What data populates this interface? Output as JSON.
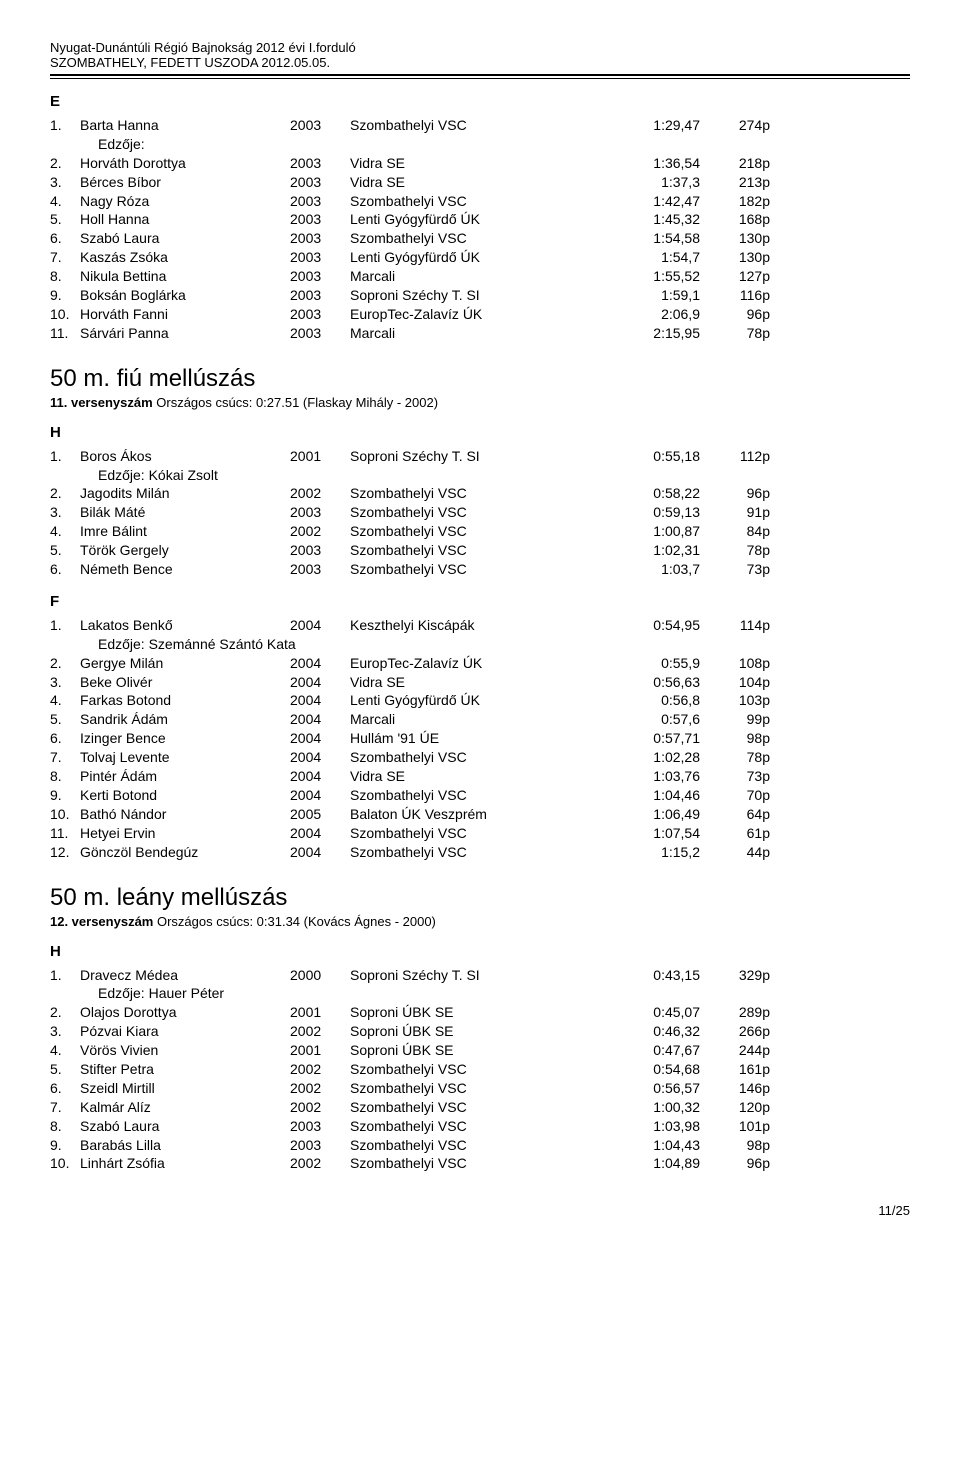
{
  "header": {
    "line1": "Nyugat-Dunántúli Régió Bajnokság 2012 évi I.forduló",
    "line2": "SZOMBATHELY, FEDETT USZODA 2012.05.05."
  },
  "sections": [
    {
      "letter": "E",
      "rows": [
        {
          "rank": "1.",
          "name": "Barta Hanna",
          "year": "2003",
          "club": "Szombathelyi VSC",
          "time": "1:29,47",
          "pts": "274p",
          "trainer": "Edzője:"
        },
        {
          "rank": "2.",
          "name": "Horváth Dorottya",
          "year": "2003",
          "club": "Vidra SE",
          "time": "1:36,54",
          "pts": "218p"
        },
        {
          "rank": "3.",
          "name": "Bérces Bíbor",
          "year": "2003",
          "club": "Vidra SE",
          "time": "1:37,3",
          "pts": "213p"
        },
        {
          "rank": "4.",
          "name": "Nagy Róza",
          "year": "2003",
          "club": "Szombathelyi VSC",
          "time": "1:42,47",
          "pts": "182p"
        },
        {
          "rank": "5.",
          "name": "Holl Hanna",
          "year": "2003",
          "club": "Lenti Gyógyfürdő ÚK",
          "time": "1:45,32",
          "pts": "168p"
        },
        {
          "rank": "6.",
          "name": "Szabó Laura",
          "year": "2003",
          "club": "Szombathelyi VSC",
          "time": "1:54,58",
          "pts": "130p"
        },
        {
          "rank": "7.",
          "name": "Kaszás Zsóka",
          "year": "2003",
          "club": "Lenti Gyógyfürdő ÚK",
          "time": "1:54,7",
          "pts": "130p"
        },
        {
          "rank": "8.",
          "name": "Nikula Bettina",
          "year": "2003",
          "club": "Marcali",
          "time": "1:55,52",
          "pts": "127p"
        },
        {
          "rank": "9.",
          "name": "Boksán Boglárka",
          "year": "2003",
          "club": "Soproni Széchy T. SI",
          "time": "1:59,1",
          "pts": "116p"
        },
        {
          "rank": "10.",
          "name": "Horváth Fanni",
          "year": "2003",
          "club": "EuropTec-Zalavíz ÚK",
          "time": "2:06,9",
          "pts": "96p"
        },
        {
          "rank": "11.",
          "name": "Sárvári Panna",
          "year": "2003",
          "club": "Marcali",
          "time": "2:15,95",
          "pts": "78p"
        }
      ]
    }
  ],
  "event1": {
    "title": "50 m. fiú mellúszás",
    "sub_bold": "11. versenyszám",
    "sub_rest": "Országos csúcs:  0:27.51 (Flaskay Mihály - 2002)",
    "groups": [
      {
        "letter": "H",
        "rows": [
          {
            "rank": "1.",
            "name": "Boros Ákos",
            "year": "2001",
            "club": "Soproni Széchy T. SI",
            "time": "0:55,18",
            "pts": "112p",
            "trainer": "Edzője: Kókai Zsolt"
          },
          {
            "rank": "2.",
            "name": "Jagodits Milán",
            "year": "2002",
            "club": "Szombathelyi VSC",
            "time": "0:58,22",
            "pts": "96p"
          },
          {
            "rank": "3.",
            "name": "Bilák Máté",
            "year": "2003",
            "club": "Szombathelyi VSC",
            "time": "0:59,13",
            "pts": "91p"
          },
          {
            "rank": "4.",
            "name": "Imre Bálint",
            "year": "2002",
            "club": "Szombathelyi VSC",
            "time": "1:00,87",
            "pts": "84p"
          },
          {
            "rank": "5.",
            "name": "Török Gergely",
            "year": "2003",
            "club": "Szombathelyi VSC",
            "time": "1:02,31",
            "pts": "78p"
          },
          {
            "rank": "6.",
            "name": "Németh Bence",
            "year": "2003",
            "club": "Szombathelyi VSC",
            "time": "1:03,7",
            "pts": "73p"
          }
        ]
      },
      {
        "letter": "F",
        "rows": [
          {
            "rank": "1.",
            "name": "Lakatos Benkő",
            "year": "2004",
            "club": "Keszthelyi Kiscápák",
            "time": "0:54,95",
            "pts": "114p",
            "trainer": "Edzője: Szemánné Szántó Kata"
          },
          {
            "rank": "2.",
            "name": "Gergye Milán",
            "year": "2004",
            "club": "EuropTec-Zalavíz ÚK",
            "time": "0:55,9",
            "pts": "108p"
          },
          {
            "rank": "3.",
            "name": "Beke Olivér",
            "year": "2004",
            "club": "Vidra SE",
            "time": "0:56,63",
            "pts": "104p"
          },
          {
            "rank": "4.",
            "name": "Farkas Botond",
            "year": "2004",
            "club": "Lenti Gyógyfürdő ÚK",
            "time": "0:56,8",
            "pts": "103p"
          },
          {
            "rank": "5.",
            "name": "Sandrik Ádám",
            "year": "2004",
            "club": "Marcali",
            "time": "0:57,6",
            "pts": "99p"
          },
          {
            "rank": "6.",
            "name": "Izinger Bence",
            "year": "2004",
            "club": "Hullám '91 ÚE",
            "time": "0:57,71",
            "pts": "98p"
          },
          {
            "rank": "7.",
            "name": "Tolvaj Levente",
            "year": "2004",
            "club": "Szombathelyi VSC",
            "time": "1:02,28",
            "pts": "78p"
          },
          {
            "rank": "8.",
            "name": "Pintér Ádám",
            "year": "2004",
            "club": "Vidra SE",
            "time": "1:03,76",
            "pts": "73p"
          },
          {
            "rank": "9.",
            "name": "Kerti Botond",
            "year": "2004",
            "club": "Szombathelyi VSC",
            "time": "1:04,46",
            "pts": "70p"
          },
          {
            "rank": "10.",
            "name": "Bathó Nándor",
            "year": "2005",
            "club": "Balaton ÚK Veszprém",
            "time": "1:06,49",
            "pts": "64p"
          },
          {
            "rank": "11.",
            "name": "Hetyei Ervin",
            "year": "2004",
            "club": "Szombathelyi VSC",
            "time": "1:07,54",
            "pts": "61p"
          },
          {
            "rank": "12.",
            "name": "Gönczöl Bendegúz",
            "year": "2004",
            "club": "Szombathelyi VSC",
            "time": "1:15,2",
            "pts": "44p"
          }
        ]
      }
    ]
  },
  "event2": {
    "title": "50 m. leány mellúszás",
    "sub_bold": "12. versenyszám",
    "sub_rest": "Országos csúcs:  0:31.34 (Kovács Ágnes - 2000)",
    "groups": [
      {
        "letter": "H",
        "rows": [
          {
            "rank": "1.",
            "name": "Dravecz Médea",
            "year": "2000",
            "club": "Soproni Széchy T. SI",
            "time": "0:43,15",
            "pts": "329p",
            "trainer": "Edzője: Hauer Péter"
          },
          {
            "rank": "2.",
            "name": "Olajos Dorottya",
            "year": "2001",
            "club": "Soproni ÚBK SE",
            "time": "0:45,07",
            "pts": "289p"
          },
          {
            "rank": "3.",
            "name": "Pózvai Kiara",
            "year": "2002",
            "club": "Soproni ÚBK SE",
            "time": "0:46,32",
            "pts": "266p"
          },
          {
            "rank": "4.",
            "name": "Vörös Vivien",
            "year": "2001",
            "club": "Soproni ÚBK SE",
            "time": "0:47,67",
            "pts": "244p"
          },
          {
            "rank": "5.",
            "name": "Stifter Petra",
            "year": "2002",
            "club": "Szombathelyi VSC",
            "time": "0:54,68",
            "pts": "161p"
          },
          {
            "rank": "6.",
            "name": "Szeidl Mirtill",
            "year": "2002",
            "club": "Szombathelyi VSC",
            "time": "0:56,57",
            "pts": "146p"
          },
          {
            "rank": "7.",
            "name": "Kalmár Alíz",
            "year": "2002",
            "club": "Szombathelyi VSC",
            "time": "1:00,32",
            "pts": "120p"
          },
          {
            "rank": "8.",
            "name": "Szabó Laura",
            "year": "2003",
            "club": "Szombathelyi VSC",
            "time": "1:03,98",
            "pts": "101p"
          },
          {
            "rank": "9.",
            "name": "Barabás Lilla",
            "year": "2003",
            "club": "Szombathelyi VSC",
            "time": "1:04,43",
            "pts": "98p"
          },
          {
            "rank": "10.",
            "name": "Linhárt Zsófia",
            "year": "2002",
            "club": "Szombathelyi VSC",
            "time": "1:04,89",
            "pts": "96p"
          }
        ]
      }
    ]
  },
  "footer": "11/25"
}
